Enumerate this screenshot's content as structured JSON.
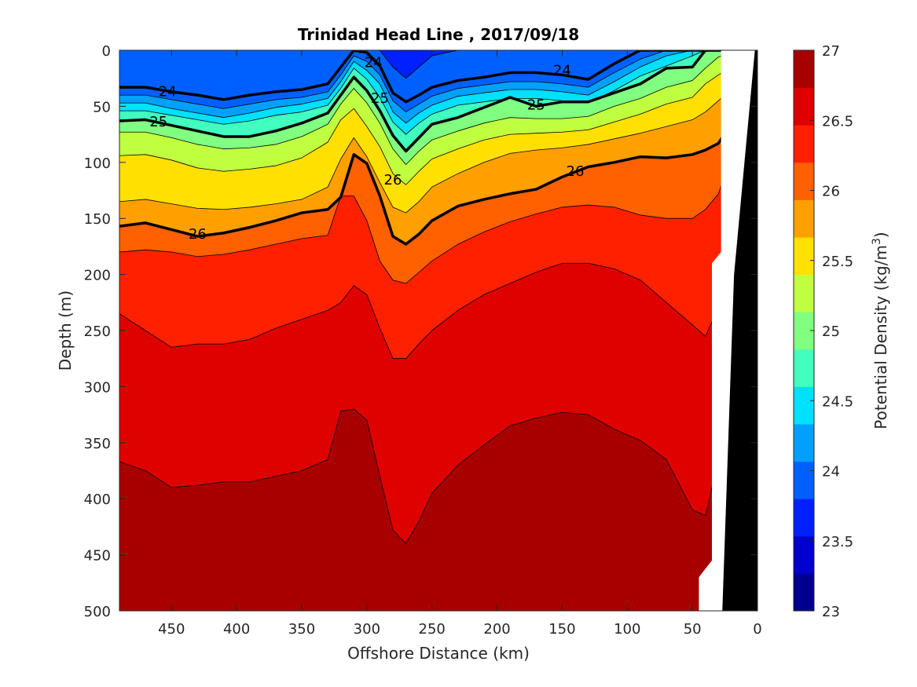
{
  "chart_data": {
    "type": "heatmap",
    "subtype": "filled-contour",
    "title": "Trinidad Head Line , 2017/09/18",
    "xlabel": "Offshore Distance (km)",
    "ylabel": "Depth (m)",
    "xlim": [
      490,
      0
    ],
    "ylim": [
      0,
      500
    ],
    "x_reversed": true,
    "y_reversed": true,
    "xticks": [
      "450",
      "400",
      "350",
      "300",
      "250",
      "200",
      "150",
      "100",
      "50",
      "0"
    ],
    "yticks": [
      "0",
      "50",
      "100",
      "150",
      "200",
      "250",
      "300",
      "350",
      "400",
      "450",
      "500"
    ],
    "colorbar": {
      "label": "Potential Density (kg/m",
      "label_sup": "3",
      "label_close": ")",
      "range": [
        23,
        27
      ],
      "ticks": [
        "23",
        "23.5",
        "24",
        "24.5",
        "25",
        "25.5",
        "26",
        "26.5",
        "27"
      ],
      "colors": [
        "#00008f",
        "#0000cf",
        "#0020ff",
        "#0060ff",
        "#00a0ff",
        "#00e0ff",
        "#40ffbf",
        "#80ff80",
        "#c0ff40",
        "#ffe000",
        "#ffa000",
        "#ff6000",
        "#ff2000",
        "#df0000",
        "#a80000"
      ]
    },
    "x": [
      490,
      470,
      450,
      430,
      410,
      390,
      370,
      350,
      330,
      320,
      310,
      300,
      290,
      280,
      270,
      260,
      250,
      230,
      210,
      190,
      170,
      150,
      130,
      110,
      90,
      70,
      50,
      40,
      30,
      20
    ],
    "levels": [
      {
        "level": 23.5,
        "depth": [
          0,
          0,
          0,
          0,
          0,
          0,
          0,
          0,
          0,
          0,
          0,
          0,
          0,
          0,
          0,
          0,
          0,
          0,
          0,
          0,
          0,
          0,
          0,
          0,
          0,
          0,
          0,
          0,
          0,
          0
        ]
      },
      {
        "level": 23.75,
        "depth": [
          0,
          0,
          0,
          0,
          0,
          0,
          0,
          0,
          0,
          0,
          0,
          0,
          0,
          15,
          25,
          15,
          5,
          0,
          0,
          0,
          0,
          0,
          0,
          0,
          0,
          0,
          0,
          0,
          0,
          0
        ]
      },
      {
        "level": 24.0,
        "depth": [
          33,
          33,
          37,
          40,
          44,
          40,
          37,
          35,
          30,
          15,
          0,
          2,
          14,
          38,
          46,
          40,
          33,
          27,
          24,
          20,
          20,
          22,
          26,
          12,
          0,
          0,
          0,
          0,
          0,
          0
        ]
      },
      {
        "level": 24.25,
        "depth": [
          40,
          40,
          44,
          48,
          52,
          48,
          44,
          42,
          37,
          22,
          5,
          10,
          22,
          45,
          55,
          48,
          41,
          34,
          31,
          28,
          28,
          30,
          33,
          20,
          8,
          0,
          0,
          0,
          0,
          0
        ]
      },
      {
        "level": 24.5,
        "depth": [
          47,
          47,
          52,
          56,
          60,
          56,
          51,
          48,
          43,
          28,
          10,
          18,
          30,
          55,
          65,
          56,
          49,
          41,
          38,
          35,
          35,
          37,
          40,
          28,
          15,
          5,
          0,
          0,
          0,
          0
        ]
      },
      {
        "level": 24.75,
        "depth": [
          54,
          54,
          58,
          62,
          66,
          63,
          58,
          55,
          49,
          34,
          16,
          26,
          42,
          64,
          75,
          65,
          57,
          49,
          46,
          43,
          43,
          45,
          47,
          36,
          23,
          14,
          5,
          0,
          0,
          0
        ]
      },
      {
        "level": 25.0,
        "depth": [
          63,
          62,
          67,
          72,
          77,
          77,
          72,
          65,
          56,
          40,
          24,
          36,
          54,
          76,
          90,
          78,
          66,
          60,
          51,
          42,
          50,
          46,
          46,
          38,
          30,
          16,
          15,
          0,
          0,
          0
        ]
      },
      {
        "level": 25.25,
        "depth": [
          73,
          73,
          78,
          84,
          88,
          87,
          84,
          77,
          66,
          48,
          34,
          47,
          65,
          88,
          102,
          90,
          80,
          72,
          65,
          60,
          61,
          61,
          59,
          50,
          43,
          33,
          27,
          16,
          6,
          2
        ]
      },
      {
        "level": 25.5,
        "depth": [
          94,
          93,
          98,
          105,
          108,
          106,
          103,
          96,
          82,
          62,
          52,
          68,
          86,
          110,
          120,
          108,
          97,
          88,
          80,
          75,
          74,
          73,
          71,
          64,
          57,
          48,
          42,
          30,
          22,
          15
        ]
      },
      {
        "level": 25.75,
        "depth": [
          135,
          133,
          137,
          141,
          142,
          140,
          137,
          133,
          122,
          97,
          78,
          95,
          118,
          140,
          145,
          135,
          122,
          110,
          100,
          92,
          89,
          87,
          84,
          79,
          74,
          68,
          62,
          55,
          45,
          35
        ]
      },
      {
        "level": 26.0,
        "depth": [
          157,
          154,
          160,
          166,
          163,
          158,
          152,
          145,
          142,
          131,
          93,
          101,
          130,
          166,
          173,
          164,
          152,
          139,
          133,
          128,
          124,
          113,
          104,
          100,
          95,
          96,
          93,
          89,
          83,
          65
        ]
      },
      {
        "level": 26.25,
        "depth": [
          180,
          178,
          180,
          184,
          182,
          178,
          173,
          168,
          165,
          130,
          130,
          152,
          188,
          205,
          208,
          198,
          188,
          173,
          162,
          153,
          146,
          140,
          138,
          140,
          147,
          150,
          150,
          142,
          128,
          95
        ]
      },
      {
        "level": 26.5,
        "depth": [
          235,
          250,
          265,
          262,
          262,
          258,
          248,
          240,
          232,
          225,
          210,
          218,
          248,
          275,
          275,
          262,
          250,
          232,
          218,
          208,
          198,
          190,
          190,
          195,
          205,
          225,
          245,
          255,
          230,
          170
        ]
      },
      {
        "level": 26.75,
        "depth": [
          367,
          375,
          390,
          388,
          385,
          385,
          380,
          375,
          365,
          322,
          320,
          330,
          380,
          428,
          440,
          420,
          395,
          370,
          352,
          335,
          328,
          323,
          325,
          338,
          348,
          365,
          410,
          415,
          365,
          340
        ]
      }
    ],
    "contour_labels": [
      {
        "text": "24",
        "x": 453,
        "y": 36
      },
      {
        "text": "24",
        "x": 295,
        "y": 10
      },
      {
        "text": "24",
        "x": 150,
        "y": 17
      },
      {
        "text": "25",
        "x": 460,
        "y": 63
      },
      {
        "text": "25",
        "x": 290,
        "y": 42
      },
      {
        "text": "25",
        "x": 170,
        "y": 48
      },
      {
        "text": "26",
        "x": 430,
        "y": 163
      },
      {
        "text": "26",
        "x": 280,
        "y": 115
      },
      {
        "text": "26",
        "x": 140,
        "y": 107
      }
    ],
    "seafloor": {
      "mask_x": [
        490,
        45,
        45,
        35,
        35,
        28,
        28,
        0,
        0
      ],
      "land_x": [
        27,
        5,
        0,
        0,
        2,
        10,
        18,
        24,
        27
      ],
      "land_y": [
        500,
        500,
        500,
        0,
        0,
        100,
        200,
        400,
        500
      ]
    }
  }
}
